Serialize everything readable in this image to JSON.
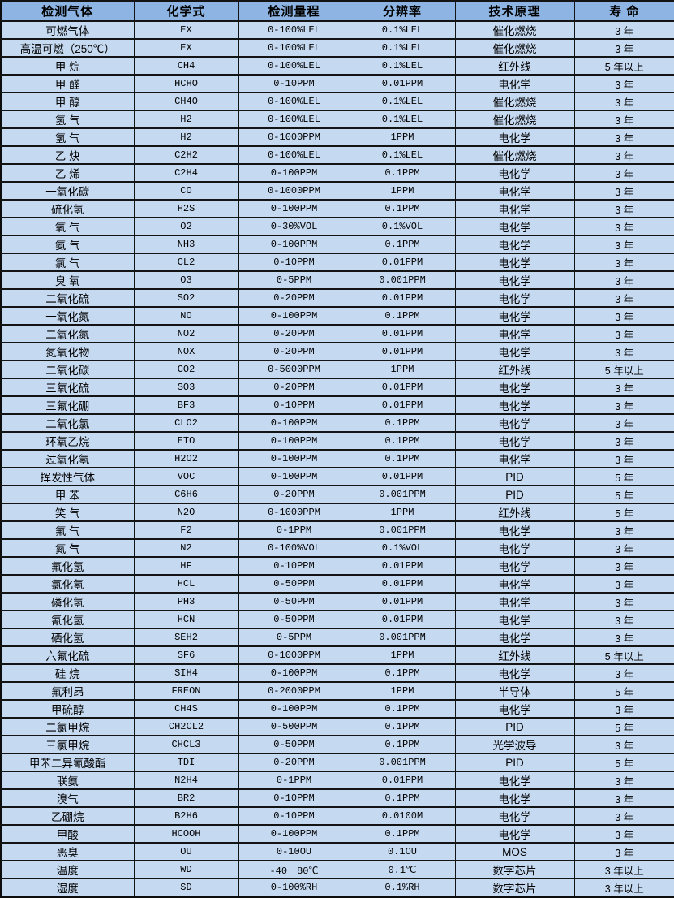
{
  "table": {
    "columns": [
      "检测气体",
      "化学式",
      "检测量程",
      "分辨率",
      "技术原理",
      "寿 命"
    ],
    "column_keys": [
      "gas-name",
      "chemical-formula",
      "detection-range",
      "resolution",
      "technology-principle",
      "lifespan"
    ],
    "header_bg_color": "#8db4e2",
    "row_bg_color": "#c5d9f1",
    "border_color": "#141414",
    "rows": [
      [
        "可燃气体",
        "EX",
        "0-100%LEL",
        "0.1%LEL",
        "催化燃烧",
        "3 年"
      ],
      [
        "高温可燃（250℃）",
        "EX",
        "0-100%LEL",
        "0.1%LEL",
        "催化燃烧",
        "3 年"
      ],
      [
        "甲 烷",
        "CH4",
        "0-100%LEL",
        "0.1%LEL",
        "红外线",
        "5 年以上"
      ],
      [
        "甲 醛",
        "HCHO",
        "0-10PPM",
        "0.01PPM",
        "电化学",
        "3 年"
      ],
      [
        "甲 醇",
        "CH4O",
        "0-100%LEL",
        "0.1%LEL",
        "催化燃烧",
        "3 年"
      ],
      [
        "氢 气",
        "H2",
        "0-100%LEL",
        "0.1%LEL",
        "催化燃烧",
        "3 年"
      ],
      [
        "氢 气",
        "H2",
        "0-1000PPM",
        "1PPM",
        "电化学",
        "3 年"
      ],
      [
        "乙 炔",
        "C2H2",
        "0-100%LEL",
        "0.1%LEL",
        "催化燃烧",
        "3 年"
      ],
      [
        "乙 烯",
        "C2H4",
        "0-100PPM",
        "0.1PPM",
        "电化学",
        "3 年"
      ],
      [
        "一氧化碳",
        "CO",
        "0-1000PPM",
        "1PPM",
        "电化学",
        "3 年"
      ],
      [
        "硫化氢",
        "H2S",
        "0-100PPM",
        "0.1PPM",
        "电化学",
        "3 年"
      ],
      [
        "氧 气",
        "O2",
        "0-30%VOL",
        "0.1%VOL",
        "电化学",
        "3 年"
      ],
      [
        "氨 气",
        "NH3",
        "0-100PPM",
        "0.1PPM",
        "电化学",
        "3 年"
      ],
      [
        "氯 气",
        "CL2",
        "0-10PPM",
        "0.01PPM",
        "电化学",
        "3 年"
      ],
      [
        "臭 氧",
        "O3",
        "0-5PPM",
        "0.001PPM",
        "电化学",
        "3 年"
      ],
      [
        "二氧化硫",
        "SO2",
        "0-20PPM",
        "0.01PPM",
        "电化学",
        "3 年"
      ],
      [
        "一氧化氮",
        "NO",
        "0-100PPM",
        "0.1PPM",
        "电化学",
        "3 年"
      ],
      [
        "二氧化氮",
        "NO2",
        "0-20PPM",
        "0.01PPM",
        "电化学",
        "3 年"
      ],
      [
        "氮氧化物",
        "NOX",
        "0-20PPM",
        "0.01PPM",
        "电化学",
        "3 年"
      ],
      [
        "二氧化碳",
        "CO2",
        "0-5000PPM",
        "1PPM",
        "红外线",
        "5 年以上"
      ],
      [
        "三氧化硫",
        "SO3",
        "0-20PPM",
        "0.01PPM",
        "电化学",
        "3 年"
      ],
      [
        "三氟化硼",
        "BF3",
        "0-10PPM",
        "0.01PPM",
        "电化学",
        "3 年"
      ],
      [
        "二氧化氯",
        "CLO2",
        "0-100PPM",
        "0.1PPM",
        "电化学",
        "3 年"
      ],
      [
        "环氧乙烷",
        "ETO",
        "0-100PPM",
        "0.1PPM",
        "电化学",
        "3 年"
      ],
      [
        "过氧化氢",
        "H2O2",
        "0-100PPM",
        "0.1PPM",
        "电化学",
        "3 年"
      ],
      [
        "挥发性气体",
        "VOC",
        "0-100PPM",
        "0.01PPM",
        "PID",
        "5 年"
      ],
      [
        "甲 苯",
        "C6H6",
        "0-20PPM",
        "0.001PPM",
        "PID",
        "5 年"
      ],
      [
        "笑 气",
        "N2O",
        "0-1000PPM",
        "1PPM",
        "红外线",
        "5 年"
      ],
      [
        "氟 气",
        "F2",
        "0-1PPM",
        "0.001PPM",
        "电化学",
        "3 年"
      ],
      [
        "氮 气",
        "N2",
        "0-100%VOL",
        "0.1%VOL",
        "电化学",
        "3 年"
      ],
      [
        "氟化氢",
        "HF",
        "0-10PPM",
        "0.01PPM",
        "电化学",
        "3 年"
      ],
      [
        "氯化氢",
        "HCL",
        "0-50PPM",
        "0.01PPM",
        "电化学",
        "3 年"
      ],
      [
        "磷化氢",
        "PH3",
        "0-50PPM",
        "0.01PPM",
        "电化学",
        "3 年"
      ],
      [
        "氰化氢",
        "HCN",
        "0-50PPM",
        "0.01PPM",
        "电化学",
        "3 年"
      ],
      [
        "硒化氢",
        "SEH2",
        "0-5PPM",
        "0.001PPM",
        "电化学",
        "3 年"
      ],
      [
        "六氟化硫",
        "SF6",
        "0-1000PPM",
        "1PPM",
        "红外线",
        "5 年以上"
      ],
      [
        "硅 烷",
        "SIH4",
        "0-100PPM",
        "0.1PPM",
        "电化学",
        "3 年"
      ],
      [
        "氟利昂",
        "FREON",
        "0-2000PPM",
        "1PPM",
        "半导体",
        "5 年"
      ],
      [
        "甲硫醇",
        "CH4S",
        "0-100PPM",
        "0.1PPM",
        "电化学",
        "3 年"
      ],
      [
        "二氯甲烷",
        "CH2CL2",
        "0-500PPM",
        "0.1PPM",
        "PID",
        "5 年"
      ],
      [
        "三氯甲烷",
        "CHCL3",
        "0-50PPM",
        "0.1PPM",
        "光学波导",
        "3 年"
      ],
      [
        "甲苯二异氰酸酯",
        "TDI",
        "0-20PPM",
        "0.001PPM",
        "PID",
        "5 年"
      ],
      [
        "联氨",
        "N2H4",
        "0-1PPM",
        "0.01PPM",
        "电化学",
        "3 年"
      ],
      [
        "溴气",
        "BR2",
        "0-10PPM",
        "0.1PPM",
        "电化学",
        "3 年"
      ],
      [
        "乙硼烷",
        "B2H6",
        "0-10PPM",
        "0.0100M",
        "电化学",
        "3 年"
      ],
      [
        "甲酸",
        "HCOOH",
        "0-100PPM",
        "0.1PPM",
        "电化学",
        "3 年"
      ],
      [
        "恶臭",
        "OU",
        "0-10OU",
        "0.1OU",
        "MOS",
        "3 年"
      ],
      [
        "温度",
        "WD",
        "-40－80℃",
        "0.1℃",
        "数字芯片",
        "3 年以上"
      ],
      [
        "湿度",
        "SD",
        "0-100%RH",
        "0.1%RH",
        "数字芯片",
        "3 年以上"
      ]
    ]
  }
}
